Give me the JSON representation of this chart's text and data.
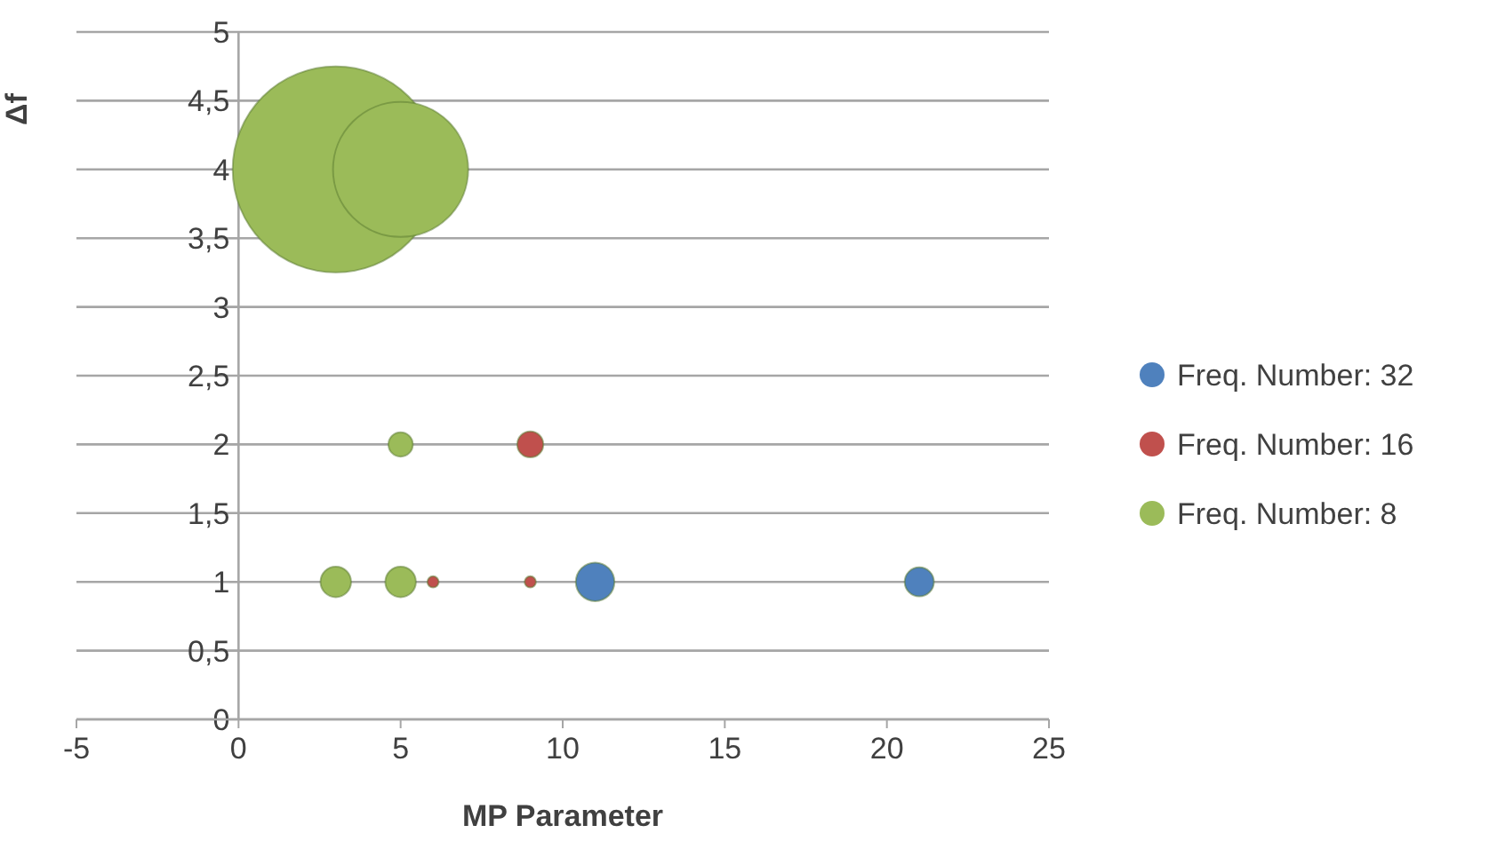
{
  "chart_data": {
    "type": "bubble",
    "xlabel": "MP Parameter",
    "ylabel": "Δf",
    "xlim": [
      -5,
      25
    ],
    "xticks": [
      -5,
      0,
      5,
      10,
      15,
      20,
      25
    ],
    "ylim": [
      0,
      5
    ],
    "yticks": [
      0,
      {
        "value": 0.5,
        "label": "0,5"
      },
      1,
      {
        "value": 1.5,
        "label": "1,5"
      },
      2,
      {
        "value": 2.5,
        "label": "2,5"
      },
      3,
      {
        "value": 3.5,
        "label": "3,5"
      },
      4,
      {
        "value": 4.5,
        "label": "4,5"
      },
      5
    ],
    "grid": "y",
    "legend": "right",
    "series": [
      {
        "name": "Freq. Number: 32",
        "color": "#4f81bd",
        "x": [
          11,
          21
        ],
        "values": [
          1,
          1
        ],
        "sizes": [
          0.035,
          0.02
        ]
      },
      {
        "name": "Freq. Number: 16",
        "color": "#c0504d",
        "x": [
          9,
          6,
          9
        ],
        "values": [
          2,
          1,
          1
        ],
        "sizes": [
          0.016,
          0.003,
          0.003
        ]
      },
      {
        "name": "Freq. Number: 8",
        "color": "#9bbb59",
        "x": [
          3,
          5,
          3,
          5,
          5
        ],
        "values": [
          4,
          4,
          1,
          1,
          2
        ],
        "sizes": [
          1,
          0.43,
          0.022,
          0.022,
          0.014
        ]
      }
    ]
  }
}
